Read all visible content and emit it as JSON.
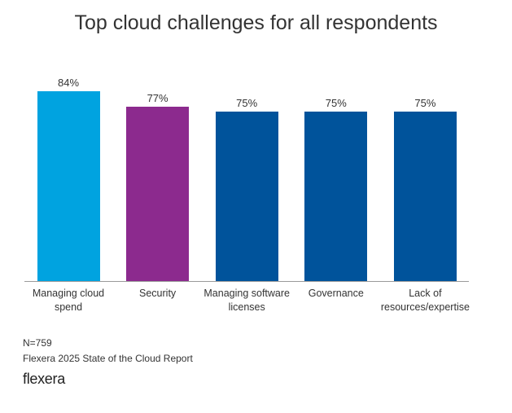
{
  "chart_data": {
    "type": "bar",
    "title": "Top cloud challenges for all respondents",
    "categories": [
      "Managing cloud spend",
      "Security",
      "Managing software licenses",
      "Governance",
      "Lack of resources/expertise"
    ],
    "values": [
      84,
      77,
      75,
      75,
      75
    ],
    "value_labels": [
      "84%",
      "77%",
      "75%",
      "75%",
      "75%"
    ],
    "colors": [
      "#00a3e0",
      "#8c2a8e",
      "#00539b",
      "#00539b",
      "#00539b"
    ],
    "sample_note": "N=759",
    "source": "Flexera 2025 State of the Cloud Report",
    "logo": "flexera"
  }
}
